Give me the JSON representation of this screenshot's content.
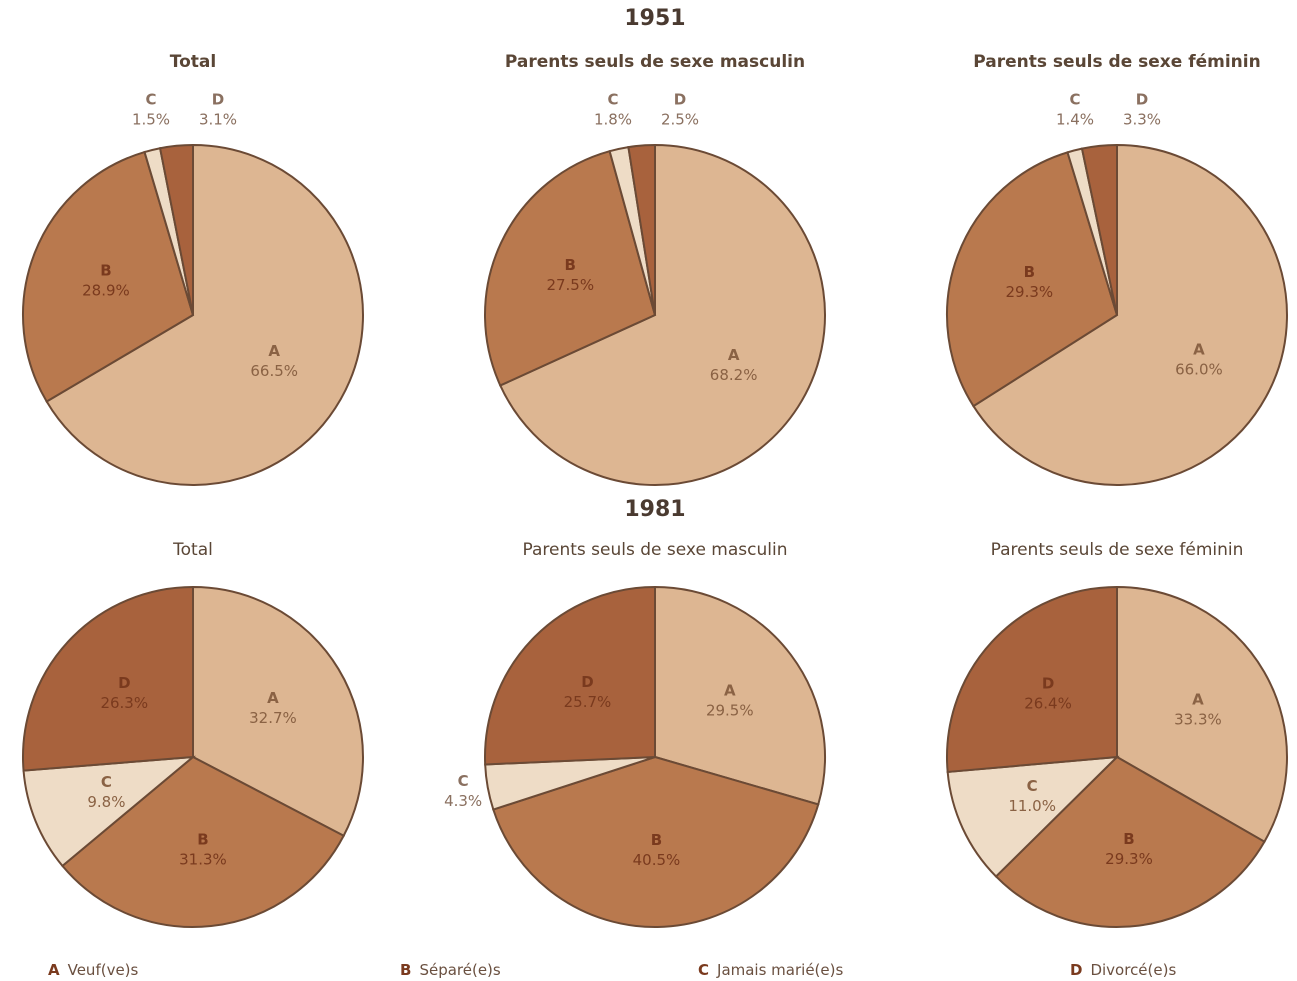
{
  "sections": [
    "1951",
    "1981"
  ],
  "chart_data": [
    {
      "type": "pie",
      "title": "Total",
      "categories": [
        "A",
        "B",
        "C",
        "D"
      ],
      "values": [
        66.5,
        28.9,
        1.5,
        3.1
      ],
      "value_labels": [
        "66.5%",
        "28.9%",
        "1.5%",
        "3.1%"
      ],
      "colors": [
        "#ddb692",
        "#b9794e",
        "#eedcc6",
        "#a8623d"
      ]
    },
    {
      "type": "pie",
      "title": "Parents seuls de sexe masculin",
      "categories": [
        "A",
        "B",
        "C",
        "D"
      ],
      "values": [
        68.2,
        27.5,
        1.8,
        2.5
      ],
      "value_labels": [
        "68.2%",
        "27.5%",
        "1.8%",
        "2.5%"
      ],
      "colors": [
        "#ddb692",
        "#b9794e",
        "#eedcc6",
        "#a8623d"
      ]
    },
    {
      "type": "pie",
      "title": "Parents seuls de sexe féminin",
      "categories": [
        "A",
        "B",
        "C",
        "D"
      ],
      "values": [
        66.0,
        29.3,
        1.4,
        3.3
      ],
      "value_labels": [
        "66.0%",
        "29.3%",
        "1.4%",
        "3.3%"
      ],
      "colors": [
        "#ddb692",
        "#b9794e",
        "#eedcc6",
        "#a8623d"
      ]
    },
    {
      "type": "pie",
      "title": "Total",
      "categories": [
        "A",
        "B",
        "C",
        "D"
      ],
      "values": [
        32.7,
        31.3,
        9.8,
        26.3
      ],
      "value_labels": [
        "32.7%",
        "31.3%",
        "9.8%",
        "26.3%"
      ],
      "colors": [
        "#ddb692",
        "#b9794e",
        "#eedcc6",
        "#a8623d"
      ]
    },
    {
      "type": "pie",
      "title": "Parents seuls de sexe masculin",
      "categories": [
        "A",
        "B",
        "C",
        "D"
      ],
      "values": [
        29.5,
        40.5,
        4.3,
        25.7
      ],
      "value_labels": [
        "29.5%",
        "40.5%",
        "4.3%",
        "25.7%"
      ],
      "colors": [
        "#ddb692",
        "#b9794e",
        "#eedcc6",
        "#a8623d"
      ]
    },
    {
      "type": "pie",
      "title": "Parents seuls de sexe féminin",
      "categories": [
        "A",
        "B",
        "C",
        "D"
      ],
      "values": [
        33.3,
        29.3,
        11.0,
        26.4
      ],
      "value_labels": [
        "33.3%",
        "29.3%",
        "11.0%",
        "26.4%"
      ],
      "colors": [
        "#ddb692",
        "#b9794e",
        "#eedcc6",
        "#a8623d"
      ]
    }
  ],
  "legend": [
    {
      "key": "A",
      "label": "Veuf(ve)s"
    },
    {
      "key": "B",
      "label": "Séparé(e)s"
    },
    {
      "key": "C",
      "label": "Jamais marié(e)s"
    },
    {
      "key": "D",
      "label": "Divorcé(e)s"
    }
  ]
}
